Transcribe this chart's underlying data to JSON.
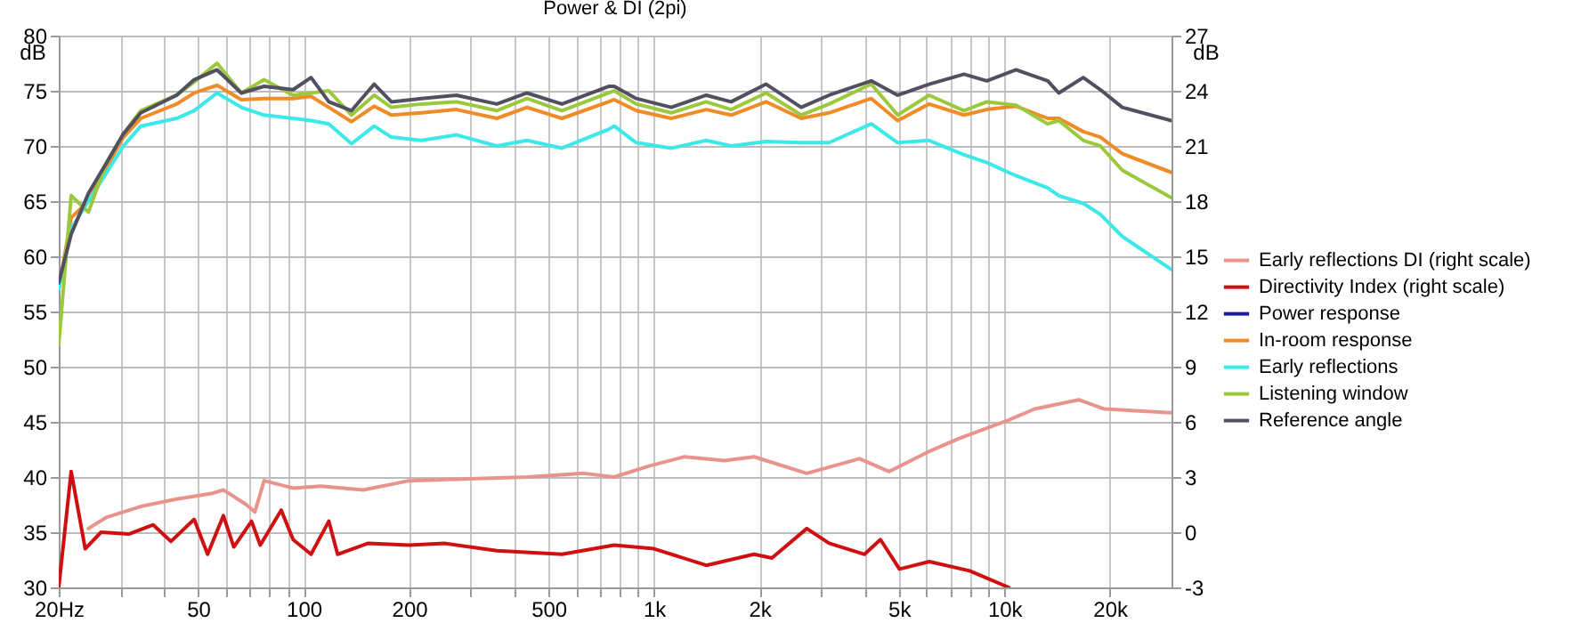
{
  "chart_data": {
    "type": "line",
    "title": "Power & DI (2pi)",
    "ylabel": "dB",
    "y2label": "dB",
    "x": [
      20,
      21.7,
      24.3,
      27.3,
      30.6,
      34.3,
      43.4,
      48.7,
      56.6,
      66.4,
      77.1,
      93.3,
      105,
      118,
      137,
      159,
      178,
      217,
      273,
      356,
      434,
      546,
      742,
      770,
      890,
      1120,
      1410,
      1660,
      2090,
      2630,
      3160,
      4170,
      4960,
      6100,
      7670,
      8910,
      10800,
      13300,
      14300,
      16800,
      18800,
      21700,
      30000
    ],
    "series": [
      {
        "name": "Early reflections DI (right scale)",
        "color": "#e8948c",
        "axis": "y2",
        "x": [
          24.3,
          27.3,
          34.3,
          43.4,
          54.5,
          59,
          68.6,
          72.6,
          77.1,
          93.3,
          112,
          148,
          200,
          296,
          434,
          632,
          770,
          968,
          1220,
          1590,
          1930,
          2730,
          3860,
          4690,
          6110,
          7430,
          10300,
          12200,
          16300,
          19300,
          30000
        ],
        "values": [
          0.2,
          0.8,
          1.4,
          1.8,
          2.1,
          2.3,
          1.5,
          1.1,
          2.8,
          2.4,
          2.5,
          2.3,
          2.8,
          2.9,
          3.0,
          3.2,
          3.0,
          3.6,
          4.1,
          3.9,
          4.1,
          3.2,
          4.0,
          3.3,
          4.4,
          5.1,
          6.1,
          6.7,
          7.2,
          6.7,
          6.5
        ]
      },
      {
        "name": "Directivity Index (right scale)",
        "color": "#d01010",
        "axis": "y2",
        "x": [
          20,
          21.7,
          23.8,
          26.4,
          31.7,
          37.2,
          41.8,
          48.7,
          53.2,
          59,
          63.2,
          71,
          75.2,
          86.3,
          93.3,
          105,
          118,
          125,
          153,
          200,
          252,
          356,
          546,
          770,
          1000,
          1410,
          1930,
          2170,
          2730,
          3160,
          3990,
          4430,
          5020,
          6110,
          7960,
          10300
        ],
        "values": [
          -3,
          3.3,
          -0.9,
          0.0,
          -0.1,
          0.4,
          -0.5,
          0.7,
          -1.2,
          0.9,
          -0.8,
          0.6,
          -0.7,
          1.2,
          -0.4,
          -1.2,
          0.6,
          -1.2,
          -0.6,
          -0.7,
          -0.6,
          -1.0,
          -1.2,
          -0.7,
          -0.9,
          -1.8,
          -1.2,
          -1.4,
          0.2,
          -0.6,
          -1.2,
          -0.4,
          -2.0,
          -1.6,
          -2.1,
          -3
        ]
      },
      {
        "name": "Power response",
        "color": "#1a1aa0",
        "values": [
          null,
          null,
          null,
          null,
          null,
          null,
          null,
          null,
          null,
          null,
          null,
          null,
          null,
          null,
          null,
          null,
          null,
          null,
          null,
          null,
          null,
          null,
          null,
          null,
          null,
          null,
          null,
          null,
          null,
          null,
          null,
          null,
          null,
          null,
          null,
          null,
          null,
          null,
          null,
          null,
          null,
          null,
          null
        ]
      },
      {
        "name": "In-room response",
        "color": "#f08c28",
        "values": [
          57,
          63.5,
          65,
          68,
          70.8,
          72.5,
          73.8,
          74.8,
          75.5,
          74.2,
          74.3,
          74.3,
          74.5,
          73.5,
          72.2,
          73.6,
          72.8,
          73,
          73.3,
          72.5,
          73.5,
          72.5,
          74,
          74.2,
          73.2,
          72.5,
          73.3,
          72.8,
          74,
          72.5,
          73,
          74.3,
          72.3,
          73.8,
          72.8,
          73.3,
          73.6,
          72.5,
          72.5,
          71.3,
          70.8,
          69.3,
          67.6
        ]
      },
      {
        "name": "Early reflections",
        "color": "#3ce8e8",
        "values": [
          57,
          62.5,
          65,
          67.5,
          70,
          71.8,
          72.5,
          73.2,
          74.8,
          73.5,
          72.8,
          72.5,
          72.3,
          72,
          70.2,
          71.8,
          70.8,
          70.5,
          71,
          70,
          70.5,
          69.8,
          71.5,
          71.8,
          70.3,
          69.8,
          70.5,
          70,
          70.4,
          70.3,
          70.3,
          72,
          70.3,
          70.5,
          69.2,
          68.5,
          67.3,
          66.2,
          65.5,
          64.8,
          63.8,
          61.8,
          58.8
        ]
      },
      {
        "name": "Listening window",
        "color": "#9cc83c",
        "values": [
          52,
          65.5,
          64,
          68.4,
          71.1,
          73.2,
          74.6,
          75.8,
          77.5,
          74.8,
          76,
          74.6,
          74.8,
          75,
          72.8,
          74.6,
          73.5,
          73.8,
          74,
          73.2,
          74.3,
          73.2,
          74.8,
          75,
          73.8,
          73,
          74,
          73.3,
          74.8,
          72.8,
          73.8,
          75.6,
          72.8,
          74.6,
          73.2,
          74,
          73.7,
          72,
          72.3,
          70.5,
          70,
          67.8,
          65.3
        ]
      },
      {
        "name": "Reference angle",
        "color": "#505060",
        "values": [
          57.6,
          62,
          65.7,
          68.4,
          71.1,
          73,
          74.6,
          76,
          76.9,
          74.8,
          75.4,
          75.1,
          76.2,
          74,
          73.2,
          75.6,
          74,
          74.3,
          74.6,
          73.8,
          74.8,
          73.8,
          75.4,
          75.4,
          74.3,
          73.5,
          74.6,
          74,
          75.6,
          73.5,
          74.6,
          75.9,
          74.6,
          75.6,
          76.5,
          75.9,
          76.9,
          75.9,
          74.8,
          76.2,
          75.1,
          73.5,
          72.3
        ]
      }
    ],
    "log": "x",
    "xlim": [
      20,
      30000
    ],
    "xticks": [
      {
        "value": 20,
        "label": "20Hz"
      },
      {
        "value": 30,
        "label": null
      },
      {
        "value": 40,
        "label": null
      },
      50,
      {
        "value": 60,
        "label": null
      },
      {
        "value": 70,
        "label": null
      },
      {
        "value": 80,
        "label": null
      },
      {
        "value": 90,
        "label": null
      },
      100,
      200,
      {
        "value": 300,
        "label": null
      },
      {
        "value": 400,
        "label": null
      },
      500,
      {
        "value": 600,
        "label": null
      },
      {
        "value": 700,
        "label": null
      },
      {
        "value": 800,
        "label": null
      },
      {
        "value": 900,
        "label": null
      },
      {
        "value": 1000,
        "label": "1k"
      },
      {
        "value": 2000,
        "label": "2k"
      },
      {
        "value": 3000,
        "label": null
      },
      {
        "value": 4000,
        "label": null
      },
      {
        "value": 5000,
        "label": "5k"
      },
      {
        "value": 6000,
        "label": null
      },
      {
        "value": 7000,
        "label": null
      },
      {
        "value": 8000,
        "label": null
      },
      {
        "value": 9000,
        "label": null
      },
      {
        "value": 10000,
        "label": "10k"
      },
      {
        "value": 20000,
        "label": "20k"
      }
    ],
    "ylim": [
      30,
      80
    ],
    "yticks": [
      30,
      35,
      40,
      45,
      50,
      55,
      60,
      65,
      70,
      75,
      80
    ],
    "y2lim": [
      -3,
      27
    ],
    "y2ticks": [
      -3,
      0,
      3,
      6,
      9,
      12,
      15,
      18,
      21,
      24,
      27
    ],
    "grid": true,
    "legend": "right",
    "line_style": "solid"
  }
}
